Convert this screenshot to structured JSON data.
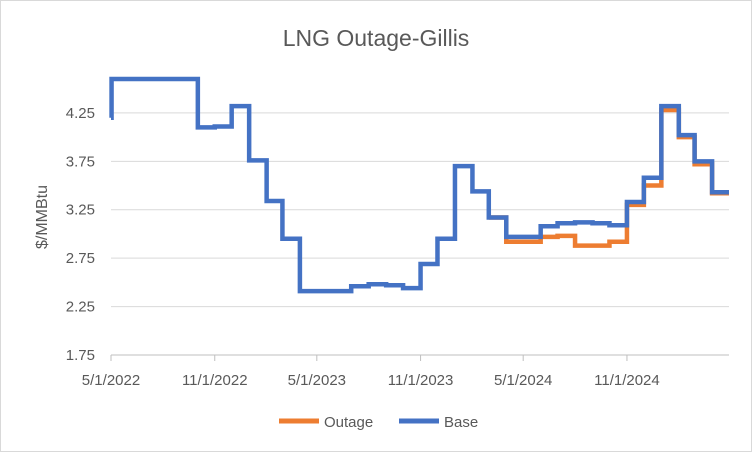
{
  "chart_data": {
    "type": "line",
    "title": "LNG Outage-Gillis",
    "xlabel": "",
    "ylabel": "$/MMBtu",
    "ylim": [
      1.75,
      4.6
    ],
    "y_ticks": [
      "1.75",
      "2.25",
      "2.75",
      "3.25",
      "3.75",
      "4.25"
    ],
    "x_ticks": [
      "5/1/2022",
      "11/1/2022",
      "5/1/2023",
      "11/1/2023",
      "5/1/2024",
      "11/1/2024"
    ],
    "x_tick_dates": [
      "2022-05-01",
      "2022-11-01",
      "2023-05-01",
      "2023-11-01",
      "2024-05-01",
      "2024-11-01"
    ],
    "xlim": [
      "2022-05-01",
      "2025-05-01"
    ],
    "step": true,
    "grid": "horizontal",
    "legend_position": "bottom",
    "series": [
      {
        "name": "Outage",
        "color": "#ed7d31",
        "points": [
          [
            "2024-03-01",
            3.17
          ],
          [
            "2024-04-01",
            2.92
          ],
          [
            "2024-05-01",
            2.92
          ],
          [
            "2024-06-01",
            2.97
          ],
          [
            "2024-07-01",
            2.98
          ],
          [
            "2024-08-01",
            2.88
          ],
          [
            "2024-09-01",
            2.88
          ],
          [
            "2024-10-01",
            2.92
          ],
          [
            "2024-11-01",
            3.3
          ],
          [
            "2024-12-01",
            3.5
          ],
          [
            "2025-01-01",
            4.28
          ],
          [
            "2025-02-01",
            4.0
          ],
          [
            "2025-03-01",
            3.72
          ],
          [
            "2025-04-01",
            3.42
          ]
        ]
      },
      {
        "name": "Base",
        "color": "#4472c4",
        "points": [
          [
            "2022-05-01",
            4.2
          ],
          [
            "2022-05-02",
            4.6
          ],
          [
            "2022-10-01",
            4.6
          ],
          [
            "2022-10-02",
            4.1
          ],
          [
            "2022-11-01",
            4.11
          ],
          [
            "2022-12-01",
            4.32
          ],
          [
            "2023-01-01",
            3.76
          ],
          [
            "2023-02-01",
            3.34
          ],
          [
            "2023-03-01",
            2.95
          ],
          [
            "2023-04-01",
            2.41
          ],
          [
            "2023-05-01",
            2.41
          ],
          [
            "2023-06-01",
            2.41
          ],
          [
            "2023-07-01",
            2.46
          ],
          [
            "2023-08-01",
            2.48
          ],
          [
            "2023-09-01",
            2.47
          ],
          [
            "2023-10-01",
            2.44
          ],
          [
            "2023-11-01",
            2.69
          ],
          [
            "2023-12-01",
            2.95
          ],
          [
            "2024-01-01",
            3.7
          ],
          [
            "2024-02-01",
            3.44
          ],
          [
            "2024-03-01",
            3.17
          ],
          [
            "2024-04-01",
            2.97
          ],
          [
            "2024-05-01",
            2.97
          ],
          [
            "2024-06-01",
            3.08
          ],
          [
            "2024-07-01",
            3.11
          ],
          [
            "2024-08-01",
            3.12
          ],
          [
            "2024-09-01",
            3.11
          ],
          [
            "2024-10-01",
            3.09
          ],
          [
            "2024-11-01",
            3.33
          ],
          [
            "2024-12-01",
            3.58
          ],
          [
            "2025-01-01",
            4.32
          ],
          [
            "2025-02-01",
            4.02
          ],
          [
            "2025-03-01",
            3.75
          ],
          [
            "2025-04-01",
            3.43
          ]
        ]
      }
    ]
  }
}
